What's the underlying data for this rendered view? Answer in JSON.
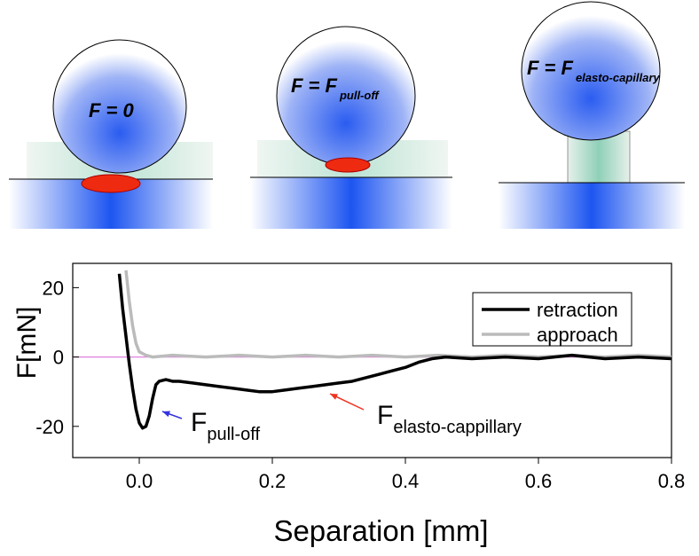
{
  "illustrations": [
    {
      "label": "F = 0"
    },
    {
      "label": "F = F",
      "subscript": "pull-off"
    },
    {
      "label": "F = F",
      "subscript": "elasto-capillary"
    }
  ],
  "chart_data": {
    "type": "line",
    "xlabel": "Separation [mm]",
    "ylabel": "F[mN]",
    "xlim": [
      -0.1,
      0.8
    ],
    "ylim": [
      -29,
      27
    ],
    "xticks": [
      {
        "value": 0,
        "label": "0.0"
      },
      0.2,
      0.4,
      0.6,
      0.8
    ],
    "yticks": [
      -20,
      0,
      20
    ],
    "zero_line_color": "#e080e0",
    "legend": "top-right",
    "series": [
      {
        "name": "approach",
        "color": "#bbbbbb",
        "x": [
          -0.02,
          -0.015,
          -0.01,
          -0.005,
          0,
          0.01,
          0.02,
          0.05,
          0.1,
          0.15,
          0.2,
          0.25,
          0.3,
          0.35,
          0.4,
          0.45,
          0.5,
          0.55,
          0.6,
          0.65,
          0.7,
          0.75,
          0.8
        ],
        "values": [
          25,
          16,
          9,
          4,
          1.5,
          0.5,
          0,
          0.5,
          0,
          0.5,
          0,
          0.5,
          0,
          0.5,
          0,
          0.5,
          0,
          0.5,
          0,
          0.5,
          0,
          0.5,
          0
        ]
      },
      {
        "name": "retraction",
        "color": "#000000",
        "x": [
          -0.03,
          -0.025,
          -0.02,
          -0.015,
          -0.01,
          -0.005,
          0,
          0.005,
          0.01,
          0.015,
          0.02,
          0.025,
          0.03,
          0.04,
          0.05,
          0.06,
          0.08,
          0.1,
          0.12,
          0.14,
          0.16,
          0.18,
          0.2,
          0.22,
          0.24,
          0.26,
          0.28,
          0.3,
          0.32,
          0.34,
          0.36,
          0.38,
          0.4,
          0.42,
          0.44,
          0.46,
          0.5,
          0.55,
          0.6,
          0.65,
          0.7,
          0.75,
          0.8
        ],
        "values": [
          24,
          14,
          6,
          -2,
          -9,
          -15,
          -19,
          -20.5,
          -20,
          -17,
          -12,
          -8,
          -7,
          -6.5,
          -7,
          -7,
          -7.5,
          -8,
          -8.5,
          -9,
          -9.5,
          -10,
          -10,
          -9.5,
          -9,
          -8.5,
          -8,
          -7.5,
          -7,
          -6,
          -5,
          -4,
          -3,
          -1.5,
          -0.5,
          0,
          -0.5,
          0,
          -0.5,
          0.5,
          -0.5,
          0,
          -0.5
        ]
      }
    ],
    "annotations": [
      {
        "text": "F",
        "subscript": "pull-off",
        "color": "#3333dd"
      },
      {
        "text": "F",
        "subscript": "elasto-cappillary",
        "color": "#ee3322"
      }
    ]
  }
}
